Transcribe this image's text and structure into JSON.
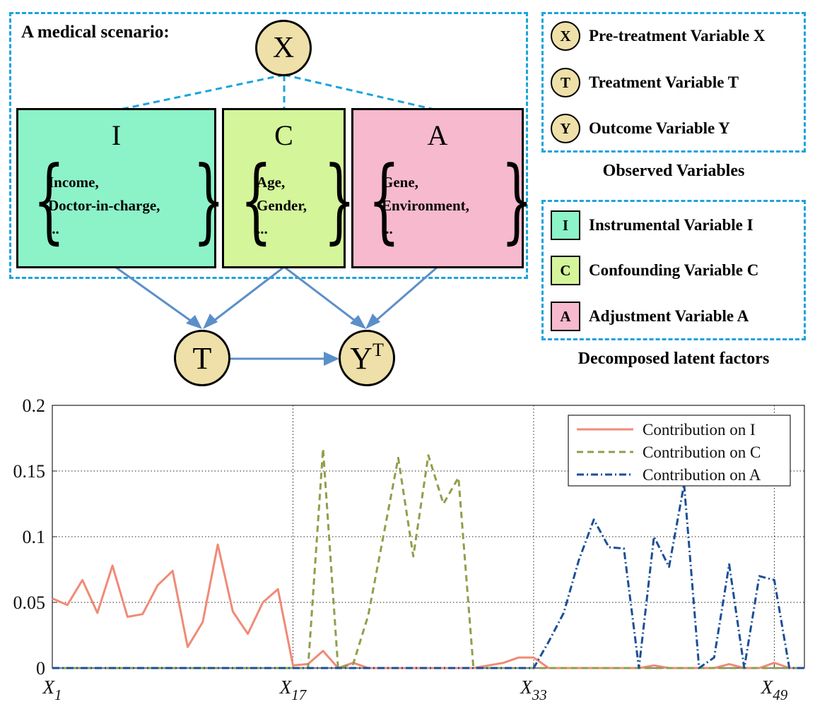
{
  "scenario": {
    "title": "A medical scenario:",
    "x_node": "X",
    "t_node": "T",
    "y_node": "Y",
    "y_node_sup": "T",
    "boxes": [
      {
        "letter": "I",
        "items": [
          "Income,",
          "Doctor-in-charge,",
          "..."
        ],
        "color": "#8cf2c8"
      },
      {
        "letter": "C",
        "items": [
          "Age,",
          "Gender,",
          "..."
        ],
        "color": "#d4f59a"
      },
      {
        "letter": "A",
        "items": [
          "Gene,",
          "Environment,",
          "..."
        ],
        "color": "#f7b9cd"
      }
    ]
  },
  "legend_observed": {
    "rows": [
      {
        "symbol": "X",
        "label": "Pre-treatment Variable X"
      },
      {
        "symbol": "T",
        "label": "Treatment Variable T"
      },
      {
        "symbol": "Y",
        "label": "Outcome Variable Y"
      }
    ],
    "caption": "Observed Variables"
  },
  "legend_latent": {
    "rows": [
      {
        "symbol": "I",
        "label": "Instrumental Variable I",
        "color": "#8cf2c8"
      },
      {
        "symbol": "C",
        "label": "Confounding Variable C",
        "color": "#d4f59a"
      },
      {
        "symbol": "A",
        "label": "Adjustment Variable A",
        "color": "#f7b9cd"
      }
    ],
    "caption": "Decomposed latent factors"
  },
  "colors": {
    "dashed_border": "#1ba3dc",
    "arrow": "#5b8fc9",
    "node_fill": "#eee0a8"
  },
  "chart_data": {
    "type": "line",
    "x": [
      1,
      2,
      3,
      4,
      5,
      6,
      7,
      8,
      9,
      10,
      11,
      12,
      13,
      14,
      15,
      16,
      17,
      18,
      19,
      20,
      21,
      22,
      23,
      24,
      25,
      26,
      27,
      28,
      29,
      30,
      31,
      32,
      33,
      34,
      35,
      36,
      37,
      38,
      39,
      40,
      41,
      42,
      43,
      44,
      45,
      46,
      47,
      48,
      49,
      50,
      51
    ],
    "xticks": [
      {
        "x": 1,
        "label": "X",
        "sub": "1"
      },
      {
        "x": 17,
        "label": "X",
        "sub": "17"
      },
      {
        "x": 33,
        "label": "X",
        "sub": "33"
      },
      {
        "x": 49,
        "label": "X",
        "sub": "49"
      }
    ],
    "yticks": [
      "0",
      "0.05",
      "0.1",
      "0.15",
      "0.2"
    ],
    "ylim": [
      0,
      0.2
    ],
    "xlim": [
      1,
      51
    ],
    "grid": true,
    "legend_position": "top-right",
    "series": [
      {
        "name": "Contribution on I",
        "color": "#f08a76",
        "dash": "solid",
        "values": [
          0.053,
          0.048,
          0.067,
          0.042,
          0.078,
          0.039,
          0.041,
          0.063,
          0.074,
          0.016,
          0.035,
          0.094,
          0.043,
          0.026,
          0.05,
          0.06,
          0.002,
          0.003,
          0.013,
          0.0,
          0.004,
          0.0,
          0.0,
          0.0,
          0.0,
          0.0,
          0.0,
          0.0,
          0.0,
          0.002,
          0.004,
          0.008,
          0.008,
          0.0,
          0.0,
          0.0,
          0.0,
          0.0,
          0.0,
          0.0,
          0.002,
          0.0,
          0.0,
          0.0,
          0.0,
          0.003,
          0.0,
          0.0,
          0.004,
          0.0,
          0.0
        ]
      },
      {
        "name": "Contribution on C",
        "color": "#8f9f4a",
        "dash": "dashed",
        "values": [
          0,
          0,
          0,
          0,
          0,
          0,
          0,
          0,
          0,
          0,
          0,
          0,
          0,
          0,
          0,
          0,
          0,
          0,
          0.167,
          0.0,
          0.003,
          0.04,
          0.1,
          0.16,
          0.085,
          0.162,
          0.125,
          0.145,
          0.0,
          0,
          0,
          0,
          0,
          0,
          0,
          0,
          0,
          0,
          0,
          0,
          0,
          0,
          0,
          0,
          0,
          0,
          0,
          0,
          0,
          0,
          0
        ]
      },
      {
        "name": "Contribution on A",
        "color": "#1a4f96",
        "dash": "dashdot",
        "values": [
          0,
          0,
          0,
          0,
          0,
          0,
          0,
          0,
          0,
          0,
          0,
          0,
          0,
          0,
          0,
          0,
          0,
          0,
          0,
          0,
          0,
          0,
          0,
          0,
          0,
          0,
          0,
          0,
          0,
          0,
          0,
          0,
          0,
          0.02,
          0.042,
          0.082,
          0.113,
          0.092,
          0.091,
          0.0,
          0.1,
          0.077,
          0.14,
          0.0,
          0.008,
          0.079,
          0.0,
          0.07,
          0.067,
          0.0,
          0.0
        ]
      }
    ]
  }
}
